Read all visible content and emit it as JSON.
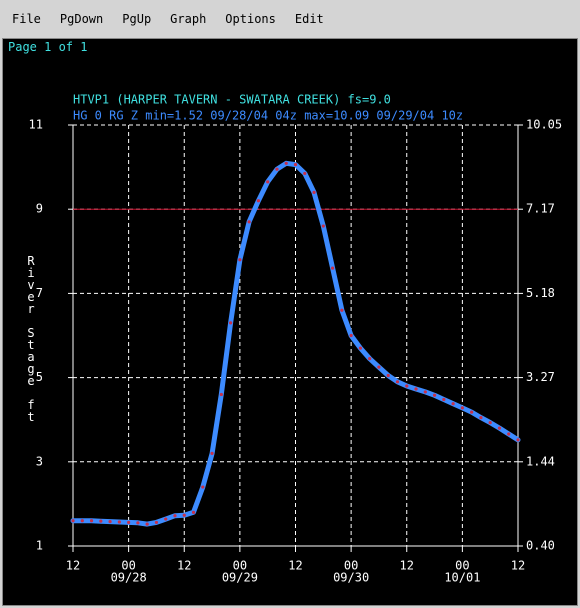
{
  "menu": [
    "File",
    "PgDown",
    "PgUp",
    "Graph",
    "Options",
    "Edit"
  ],
  "page_label": "Page 1 of 1",
  "chart_data": {
    "type": "line",
    "title": "HTVP1 (HARPER TAVERN - SWATARA CREEK) fs=9.0",
    "subtitle": "HG 0 RG Z min=1.52 09/28/04 04z max=10.09 09/29/04 10z",
    "y_label": "River Stage ft",
    "flood_stage": 9,
    "flood_color": "#c8102e",
    "grid": true,
    "ylim": [
      1,
      11
    ],
    "yticks": [
      1,
      3,
      5,
      7,
      9,
      11
    ],
    "y2ticks": [
      {
        "value": 0.4,
        "label": "0.40"
      },
      {
        "value": 1.44,
        "label": "1.44"
      },
      {
        "value": 3.27,
        "label": "3.27"
      },
      {
        "value": 5.18,
        "label": "5.18"
      },
      {
        "value": 7.17,
        "label": "7.17"
      },
      {
        "value": 10.05,
        "label": "10.05"
      }
    ],
    "xlim": [
      "2004-09-27T12:00",
      "2004-10-01T12:00"
    ],
    "xticks": [
      {
        "value": "2004-09-27T12:00",
        "label": "12"
      },
      {
        "value": "2004-09-28T00:00",
        "label": "00"
      },
      {
        "value": "2004-09-28T12:00",
        "label": "12"
      },
      {
        "value": "2004-09-29T00:00",
        "label": "00"
      },
      {
        "value": "2004-09-29T12:00",
        "label": "12"
      },
      {
        "value": "2004-09-30T00:00",
        "label": "00"
      },
      {
        "value": "2004-09-30T12:00",
        "label": "12"
      },
      {
        "value": "2004-10-01T00:00",
        "label": "00"
      },
      {
        "value": "2004-10-01T12:00",
        "label": "12"
      }
    ],
    "xtick_dates": [
      {
        "value": "2004-09-28T00:00",
        "label": "09/28"
      },
      {
        "value": "2004-09-29T00:00",
        "label": "09/29"
      },
      {
        "value": "2004-09-30T00:00",
        "label": "09/30"
      },
      {
        "value": "2004-10-01T00:00",
        "label": "10/01"
      }
    ],
    "x": [
      "2004-09-27T12:00",
      "2004-09-27T14:00",
      "2004-09-27T16:00",
      "2004-09-27T18:00",
      "2004-09-27T20:00",
      "2004-09-27T22:00",
      "2004-09-28T00:00",
      "2004-09-28T02:00",
      "2004-09-28T04:00",
      "2004-09-28T06:00",
      "2004-09-28T08:00",
      "2004-09-28T10:00",
      "2004-09-28T12:00",
      "2004-09-28T14:00",
      "2004-09-28T16:00",
      "2004-09-28T18:00",
      "2004-09-28T20:00",
      "2004-09-28T22:00",
      "2004-09-29T00:00",
      "2004-09-29T02:00",
      "2004-09-29T04:00",
      "2004-09-29T06:00",
      "2004-09-29T08:00",
      "2004-09-29T10:00",
      "2004-09-29T12:00",
      "2004-09-29T14:00",
      "2004-09-29T16:00",
      "2004-09-29T18:00",
      "2004-09-29T20:00",
      "2004-09-29T22:00",
      "2004-09-30T00:00",
      "2004-09-30T02:00",
      "2004-09-30T04:00",
      "2004-09-30T06:00",
      "2004-09-30T08:00",
      "2004-09-30T10:00",
      "2004-09-30T12:00",
      "2004-09-30T14:00",
      "2004-09-30T16:00",
      "2004-09-30T18:00",
      "2004-09-30T20:00",
      "2004-09-30T22:00",
      "2004-10-01T00:00",
      "2004-10-01T02:00",
      "2004-10-01T04:00",
      "2004-10-01T06:00",
      "2004-10-01T08:00",
      "2004-10-01T10:00",
      "2004-10-01T12:00"
    ],
    "series": [
      {
        "name": "HG 0 RG Z",
        "color": "#3d8bff",
        "marker_color": "#c8304a",
        "values": [
          1.6,
          1.6,
          1.6,
          1.59,
          1.58,
          1.57,
          1.56,
          1.55,
          1.52,
          1.56,
          1.64,
          1.72,
          1.73,
          1.8,
          2.4,
          3.2,
          4.6,
          6.3,
          7.8,
          8.7,
          9.2,
          9.65,
          9.95,
          10.09,
          10.06,
          9.85,
          9.4,
          8.6,
          7.6,
          6.6,
          6.0,
          5.7,
          5.45,
          5.25,
          5.05,
          4.9,
          4.8,
          4.73,
          4.66,
          4.58,
          4.48,
          4.38,
          4.28,
          4.18,
          4.05,
          3.93,
          3.8,
          3.66,
          3.52
        ]
      }
    ]
  }
}
